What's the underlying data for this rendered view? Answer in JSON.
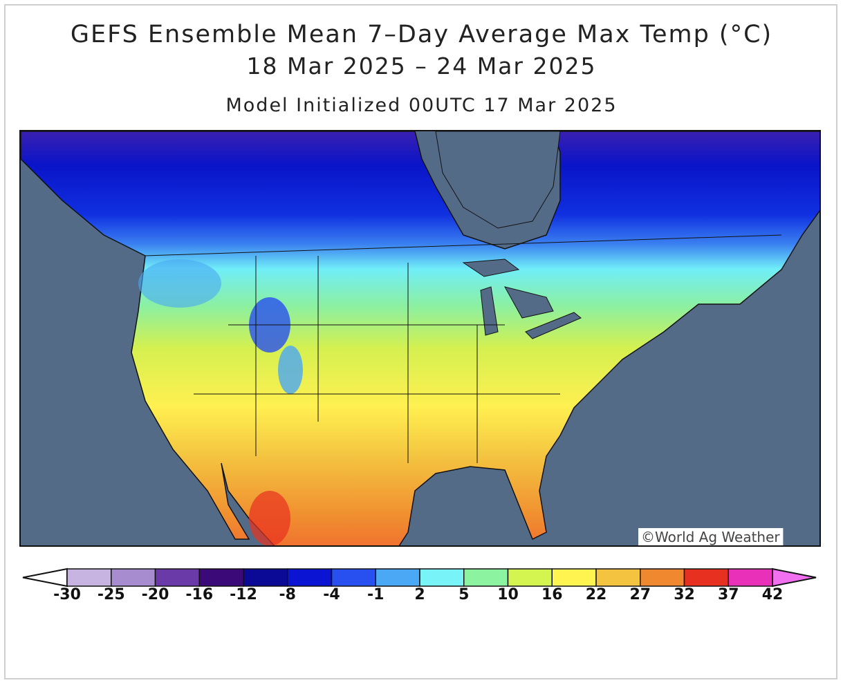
{
  "title": {
    "line1": "GEFS Ensemble Mean 7–Day Average Max Temp (°C)",
    "line2": "18 Mar 2025 – 24 Mar 2025",
    "line3": "Model Initialized 00UTC 17 Mar 2025"
  },
  "credit": "©World Ag Weather",
  "colors": {
    "ocean": "#546b88",
    "border": "#111111"
  },
  "legend": {
    "labels": [
      "-30",
      "-25",
      "-20",
      "-16",
      "-12",
      "-8",
      "-4",
      "-1",
      "2",
      "5",
      "10",
      "16",
      "22",
      "27",
      "32",
      "37",
      "42"
    ],
    "colors": [
      "#c8b4e0",
      "#a88cd0",
      "#6a3aa8",
      "#3c0a78",
      "#0a0a96",
      "#0a14d2",
      "#2850f0",
      "#4aa8f4",
      "#78f4f8",
      "#8cf4a0",
      "#d4f450",
      "#fff450",
      "#f4c440",
      "#f08830",
      "#e83020",
      "#e830b8"
    ],
    "under_color": "#ffffff",
    "over_color": "#f070f0"
  }
}
